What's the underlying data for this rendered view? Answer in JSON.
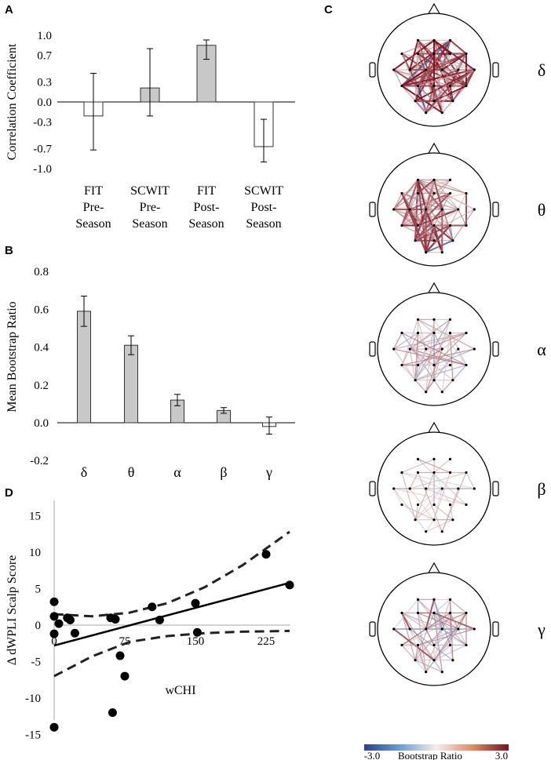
{
  "panels": {
    "A": "A",
    "B": "B",
    "C": "C",
    "D": "D"
  },
  "chart_data": [
    {
      "id": "A",
      "type": "bar",
      "ylabel": "Correlation Coefficient",
      "ylim": [
        -1.0,
        1.0
      ],
      "yticks": [
        "1.0",
        "0.7",
        "0.3",
        "0.0",
        "-0.3",
        "-0.7",
        "-1.0"
      ],
      "ytick_values": [
        1.0,
        0.7,
        0.3,
        0.0,
        -0.3,
        -0.7,
        -1.0
      ],
      "categories": [
        [
          "FIT",
          "Pre-",
          "Season"
        ],
        [
          "SCWIT",
          "Pre-",
          "Season"
        ],
        [
          "FIT",
          "Post-",
          "Season"
        ],
        [
          "SCWIT",
          "Post-",
          "Season"
        ]
      ],
      "values": [
        -0.21,
        0.21,
        0.85,
        -0.67
      ],
      "error_low": [
        -0.72,
        -0.21,
        0.64,
        -0.9
      ],
      "error_high": [
        0.43,
        0.8,
        0.93,
        -0.26
      ],
      "fill": [
        "#ffffff",
        "#c8c8c8",
        "#c8c8c8",
        "#ffffff"
      ]
    },
    {
      "id": "B",
      "type": "bar",
      "ylabel": "Mean Bootstrap Ratio",
      "ylim": [
        -0.2,
        0.8
      ],
      "yticks": [
        "0.8",
        "0.6",
        "0.4",
        "0.2",
        "0.0",
        "-0.2"
      ],
      "ytick_values": [
        0.8,
        0.6,
        0.4,
        0.2,
        0.0,
        -0.2
      ],
      "categories": [
        "δ",
        "θ",
        "α",
        "β",
        "γ"
      ],
      "values": [
        0.59,
        0.41,
        0.12,
        0.065,
        -0.02
      ],
      "error_low": [
        0.51,
        0.36,
        0.09,
        0.05,
        -0.06
      ],
      "error_high": [
        0.67,
        0.46,
        0.15,
        0.08,
        0.03
      ],
      "fill": [
        "#c8c8c8",
        "#c8c8c8",
        "#c8c8c8",
        "#c8c8c8",
        "#ffffff"
      ]
    },
    {
      "id": "D",
      "type": "scatter",
      "xlabel": "wCHI",
      "ylabel": "Δ dWPLI Scalp Score",
      "xlim": [
        0,
        250
      ],
      "ylim": [
        -15,
        15
      ],
      "xticks": [
        "0",
        "75",
        "150",
        "225"
      ],
      "xtick_values": [
        0,
        75,
        150,
        225
      ],
      "yticks": [
        "15",
        "10",
        "5",
        "0",
        "-5",
        "-10",
        "-15"
      ],
      "ytick_values": [
        15,
        10,
        5,
        0,
        -5,
        -10,
        -15
      ],
      "points": [
        [
          0,
          3.2
        ],
        [
          0,
          1.2
        ],
        [
          0,
          -1.2
        ],
        [
          0,
          -14
        ],
        [
          5,
          0.2
        ],
        [
          14,
          1.0
        ],
        [
          17,
          0.7
        ],
        [
          22,
          -1.1
        ],
        [
          60,
          1.0
        ],
        [
          65,
          0.8
        ],
        [
          62,
          -12
        ],
        [
          75,
          -7
        ],
        [
          70,
          -4.2
        ],
        [
          104,
          2.5
        ],
        [
          112,
          0.7
        ],
        [
          150,
          3.0
        ],
        [
          152,
          -1.0
        ],
        [
          225,
          9.7
        ],
        [
          250,
          5.5
        ]
      ],
      "fit_line": [
        [
          0,
          -2.8
        ],
        [
          250,
          5.8
        ]
      ],
      "ci_upper": [
        [
          0,
          1.5
        ],
        [
          40,
          1.2
        ],
        [
          80,
          1.7
        ],
        [
          120,
          3.0
        ],
        [
          160,
          5.2
        ],
        [
          200,
          8.2
        ],
        [
          250,
          12.8
        ]
      ],
      "ci_lower": [
        [
          0,
          -7.0
        ],
        [
          40,
          -4.3
        ],
        [
          80,
          -2.3
        ],
        [
          120,
          -1.5
        ],
        [
          160,
          -1.1
        ],
        [
          200,
          -0.9
        ],
        [
          250,
          -0.8
        ]
      ]
    },
    {
      "id": "C",
      "type": "connectivity-topoplot",
      "bands": [
        "δ",
        "θ",
        "α",
        "β",
        "γ"
      ],
      "band_density": [
        1.0,
        0.85,
        0.55,
        0.3,
        0.6
      ],
      "band_blue_share": [
        0.05,
        0.08,
        0.2,
        0.3,
        0.45
      ],
      "colorbar": {
        "min_label": "-3.0",
        "title": "Bootstrap Ratio",
        "max_label": "3.0",
        "range": [
          -3.0,
          3.0
        ]
      },
      "colors": {
        "neg": "#2a4f9a",
        "neutral": "#f4ede8",
        "pos": "#7d1020"
      }
    }
  ]
}
